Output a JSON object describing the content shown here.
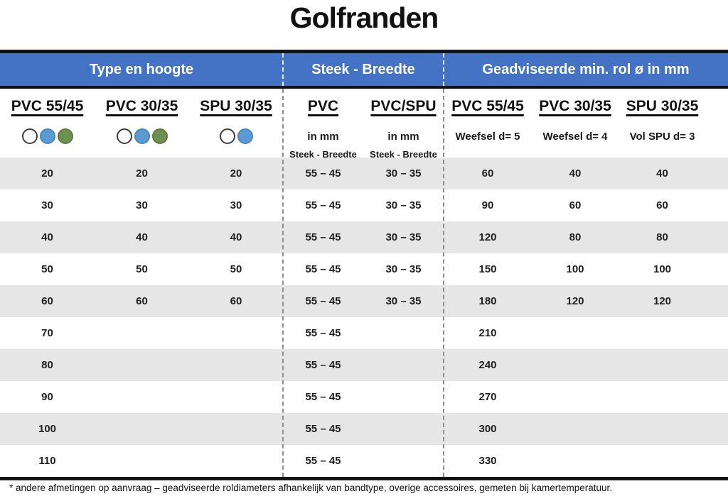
{
  "title": "Golfranden",
  "band": {
    "sections": [
      "Type en hoogte",
      "Steek - Breedte",
      "Geadviseerde min. rol ø in mm"
    ]
  },
  "columns": [
    {
      "header": "PVC 55/45",
      "dots": [
        "white",
        "blue",
        "green"
      ],
      "sub1": "",
      "sub2": ""
    },
    {
      "header": "PVC 30/35",
      "dots": [
        "white",
        "blue",
        "green"
      ],
      "sub1": "",
      "sub2": ""
    },
    {
      "header": "SPU 30/35",
      "dots": [
        "white",
        "blue"
      ],
      "sub1": "",
      "sub2": ""
    },
    {
      "header": "PVC",
      "dots": [],
      "sub1": "in mm",
      "sub2": "Steek - Breedte"
    },
    {
      "header": "PVC/SPU",
      "dots": [],
      "sub1": "in mm",
      "sub2": "Steek - Breedte"
    },
    {
      "header": "PVC 55/45",
      "dots": [],
      "sub1": "Weefsel d= 5",
      "sub2": ""
    },
    {
      "header": "PVC 30/35",
      "dots": [],
      "sub1": "Weefsel d= 4",
      "sub2": ""
    },
    {
      "header": "SPU 30/35",
      "dots": [],
      "sub1": "Vol SPU d= 3",
      "sub2": ""
    }
  ],
  "rows": [
    [
      "20",
      "20",
      "20",
      "55 – 45",
      "30 – 35",
      "60",
      "40",
      "40"
    ],
    [
      "30",
      "30",
      "30",
      "55 – 45",
      "30 – 35",
      "90",
      "60",
      "60"
    ],
    [
      "40",
      "40",
      "40",
      "55 – 45",
      "30 – 35",
      "120",
      "80",
      "80"
    ],
    [
      "50",
      "50",
      "50",
      "55 – 45",
      "30 – 35",
      "150",
      "100",
      "100"
    ],
    [
      "60",
      "60",
      "60",
      "55 – 45",
      "30 – 35",
      "180",
      "120",
      "120"
    ],
    [
      "70",
      "",
      "",
      "55 – 45",
      "",
      "210",
      "",
      ""
    ],
    [
      "80",
      "",
      "",
      "55 – 45",
      "",
      "240",
      "",
      ""
    ],
    [
      "90",
      "",
      "",
      "55 – 45",
      "",
      "270",
      "",
      ""
    ],
    [
      "100",
      "",
      "",
      "55 – 45",
      "",
      "300",
      "",
      ""
    ],
    [
      "110",
      "",
      "",
      "55 – 45",
      "",
      "330",
      "",
      ""
    ]
  ],
  "footnote": "* andere afmetingen op aanvraag – geadviseerde roldiameters afhankelijk van bandtype, overige accessoires, gemeten bij kamertemperatuur.",
  "colors": {
    "header_blue": "#4472C4",
    "alt_row_gray": "#E7E6E6",
    "dot_white": "#FFFFFF",
    "dot_blue": "#5B9BD5",
    "dot_green": "#6F9150",
    "dot_border_white": "#3d3d3d",
    "dot_border_blue": "#4a84ba",
    "dot_border_green": "#5d7b41"
  }
}
